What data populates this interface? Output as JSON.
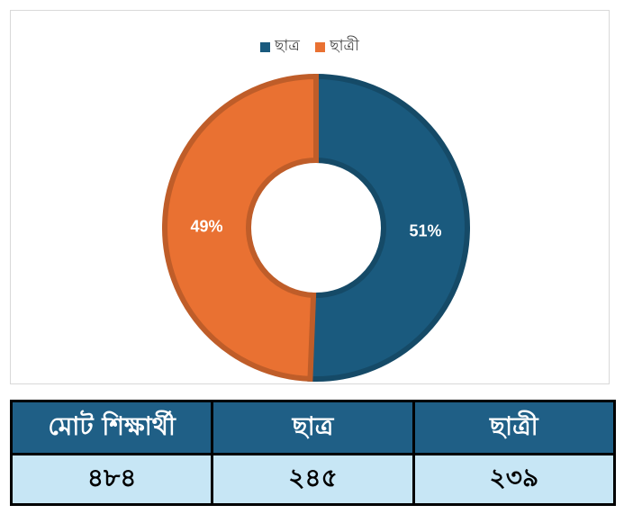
{
  "chart_data": {
    "type": "pie",
    "categories": [
      "ছাত্র",
      "ছাত্রী"
    ],
    "values": [
      245,
      239
    ],
    "labels": [
      "51%",
      "49%"
    ],
    "colors": [
      "#1a5a7e",
      "#e97132"
    ],
    "donut": true,
    "legend": "top-center"
  },
  "legend": {
    "items": [
      {
        "label": "ছাত্র",
        "color": "#1a5a7e"
      },
      {
        "label": "ছাত্রী",
        "color": "#e97132"
      }
    ]
  },
  "table": {
    "headers": [
      "মোট শিক্ষার্থী",
      "ছাত্র",
      "ছাত্রী"
    ],
    "values": [
      "৪৮৪",
      "২৪৫",
      "২৩৯"
    ]
  }
}
